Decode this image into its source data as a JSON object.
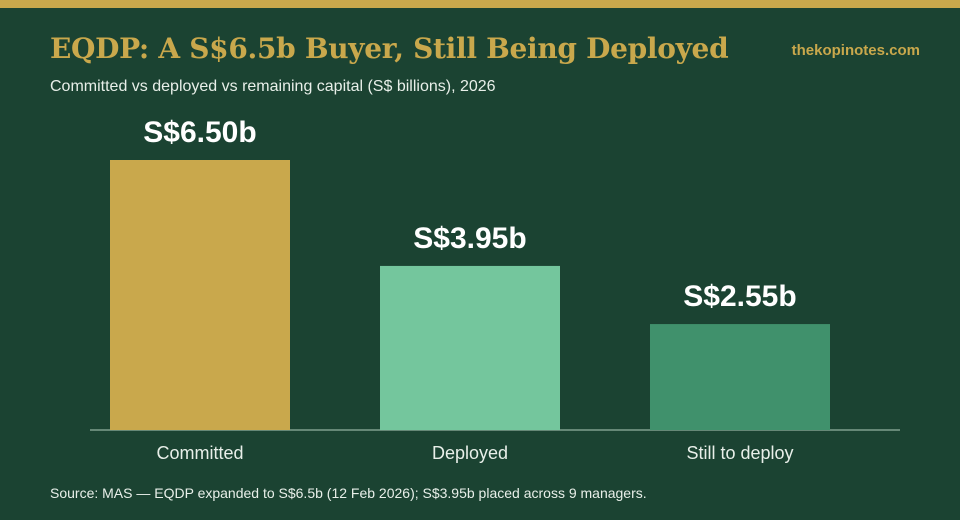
{
  "header": {
    "title": "EQDP: A S$6.5b Buyer, Still Being Deployed",
    "brand": "thekopinotes.com",
    "subtitle": "Committed vs deployed vs remaining capital (S$ billions), 2026"
  },
  "footer": {
    "source": "Source: MAS — EQDP expanded to S$6.5b (12 Feb 2026); S$3.95b placed across 9 managers."
  },
  "chart_data": {
    "type": "bar",
    "title": "EQDP: A S$6.5b Buyer, Still Being Deployed",
    "subtitle": "Committed vs deployed vs remaining capital (S$ billions), 2026",
    "categories": [
      "Committed",
      "Deployed",
      "Still to deploy"
    ],
    "values": [
      6.5,
      3.95,
      2.55
    ],
    "data_labels": [
      "S$6.50b",
      "S$3.95b",
      "S$2.55b"
    ],
    "colors": [
      "#c9a84c",
      "#74c69d",
      "#40916c"
    ],
    "xlabel": "",
    "ylabel": "",
    "grid": false,
    "legend": "none"
  },
  "colors": {
    "background": "#1b4332",
    "accent": "#c9a84c",
    "text": "#e8efe9",
    "axis": "#7f9f8e"
  }
}
